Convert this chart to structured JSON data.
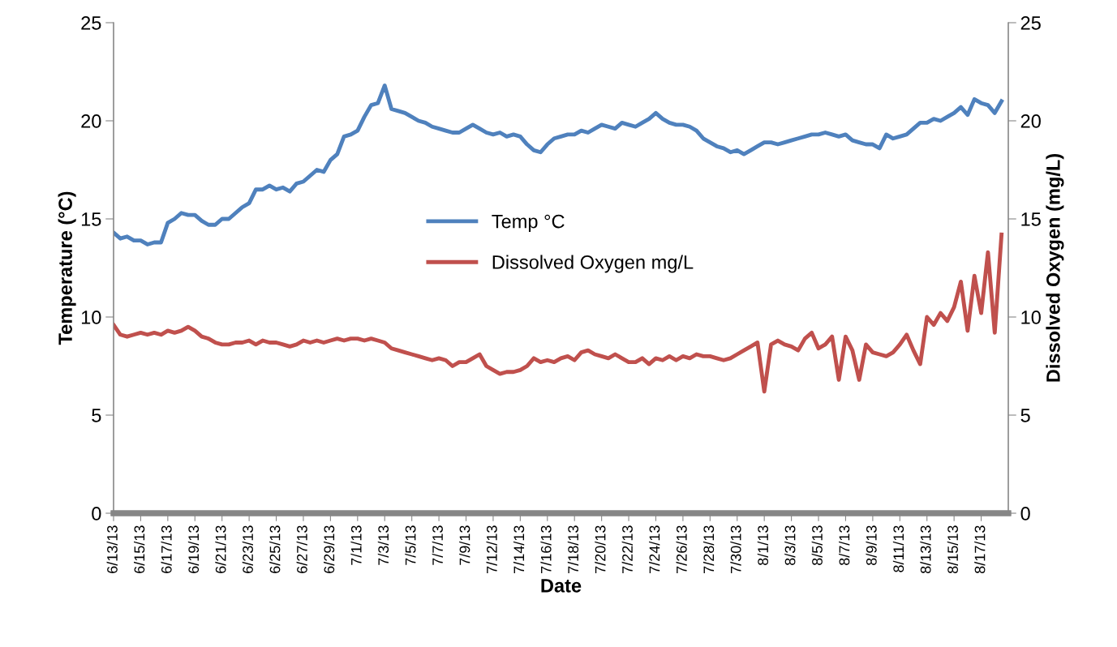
{
  "chart_data": {
    "type": "line",
    "xlabel": "Date",
    "ylabel": "Temperature (°C)",
    "y2label": "Dissolved Oxygen (mg/L)",
    "categories": [
      "6/13/13",
      null,
      null,
      null,
      "6/15/13",
      null,
      null,
      null,
      "6/17/13",
      null,
      null,
      null,
      "6/19/13",
      null,
      null,
      null,
      "6/21/13",
      null,
      null,
      null,
      "6/23/13",
      null,
      null,
      null,
      "6/25/13",
      null,
      null,
      null,
      "6/27/13",
      null,
      null,
      null,
      "6/29/13",
      null,
      null,
      null,
      "7/1/13",
      null,
      null,
      null,
      "7/3/13",
      null,
      null,
      null,
      "7/5/13",
      null,
      null,
      null,
      "7/7/13",
      null,
      null,
      null,
      "7/9/13",
      null,
      null,
      null,
      "7/12/13",
      null,
      null,
      null,
      "7/14/13",
      null,
      null,
      null,
      "7/16/13",
      null,
      null,
      null,
      "7/18/13",
      null,
      null,
      null,
      "7/20/13",
      null,
      null,
      null,
      "7/22/13",
      null,
      null,
      null,
      "7/24/13",
      null,
      null,
      null,
      "7/26/13",
      null,
      null,
      null,
      "7/28/13",
      null,
      null,
      null,
      "7/30/13",
      null,
      null,
      null,
      "8/1/13",
      null,
      null,
      null,
      "8/3/13",
      null,
      null,
      null,
      "8/5/13",
      null,
      null,
      null,
      "8/7/13",
      null,
      null,
      null,
      "8/9/13",
      null,
      null,
      null,
      "8/11/13",
      null,
      null,
      null,
      "8/13/13",
      null,
      null,
      null,
      "8/15/13",
      null,
      null,
      null,
      "8/17/13",
      null,
      null,
      null
    ],
    "series": [
      {
        "name": "Temp °C",
        "color": "#4f81bd",
        "values": [
          14.3,
          14.0,
          14.1,
          13.9,
          13.9,
          13.7,
          13.8,
          13.8,
          14.8,
          15.0,
          15.3,
          15.2,
          15.2,
          14.9,
          14.7,
          14.7,
          15.0,
          15.0,
          15.3,
          15.6,
          15.8,
          16.5,
          16.5,
          16.7,
          16.5,
          16.6,
          16.4,
          16.8,
          16.9,
          17.2,
          17.5,
          17.4,
          18.0,
          18.3,
          19.2,
          19.3,
          19.5,
          20.2,
          20.8,
          20.9,
          21.8,
          20.6,
          20.5,
          20.4,
          20.2,
          20.0,
          19.9,
          19.7,
          19.6,
          19.5,
          19.4,
          19.4,
          19.6,
          19.8,
          19.6,
          19.4,
          19.3,
          19.4,
          19.2,
          19.3,
          19.2,
          18.8,
          18.5,
          18.4,
          18.8,
          19.1,
          19.2,
          19.3,
          19.3,
          19.5,
          19.4,
          19.6,
          19.8,
          19.7,
          19.6,
          19.9,
          19.8,
          19.7,
          19.9,
          20.1,
          20.4,
          20.1,
          19.9,
          19.8,
          19.8,
          19.7,
          19.5,
          19.1,
          18.9,
          18.7,
          18.6,
          18.4,
          18.5,
          18.3,
          18.5,
          18.7,
          18.9,
          18.9,
          18.8,
          18.9,
          19.0,
          19.1,
          19.2,
          19.3,
          19.3,
          19.4,
          19.3,
          19.2,
          19.3,
          19.0,
          18.9,
          18.8,
          18.8,
          18.6,
          19.3,
          19.1,
          19.2,
          19.3,
          19.6,
          19.9,
          19.9,
          20.1,
          20.0,
          20.2,
          20.4,
          20.7,
          20.3,
          21.1,
          20.9,
          20.8,
          20.4,
          21.0
        ]
      },
      {
        "name": "Dissolved Oxygen mg/L",
        "color": "#c0504d",
        "axis": "y2",
        "values": [
          9.6,
          9.1,
          9.0,
          9.1,
          9.2,
          9.1,
          9.2,
          9.1,
          9.3,
          9.2,
          9.3,
          9.5,
          9.3,
          9.0,
          8.9,
          8.7,
          8.6,
          8.6,
          8.7,
          8.7,
          8.8,
          8.6,
          8.8,
          8.7,
          8.7,
          8.6,
          8.5,
          8.6,
          8.8,
          8.7,
          8.8,
          8.7,
          8.8,
          8.9,
          8.8,
          8.9,
          8.9,
          8.8,
          8.9,
          8.8,
          8.7,
          8.4,
          8.3,
          8.2,
          8.1,
          8.0,
          7.9,
          7.8,
          7.9,
          7.8,
          7.5,
          7.7,
          7.7,
          7.9,
          8.1,
          7.5,
          7.3,
          7.1,
          7.2,
          7.2,
          7.3,
          7.5,
          7.9,
          7.7,
          7.8,
          7.7,
          7.9,
          8.0,
          7.8,
          8.2,
          8.3,
          8.1,
          8.0,
          7.9,
          8.1,
          7.9,
          7.7,
          7.7,
          7.9,
          7.6,
          7.9,
          7.8,
          8.0,
          7.8,
          8.0,
          7.9,
          8.1,
          8.0,
          8.0,
          7.9,
          7.8,
          7.9,
          8.1,
          8.3,
          8.5,
          8.7,
          6.2,
          8.6,
          8.8,
          8.6,
          8.5,
          8.3,
          8.9,
          9.2,
          8.4,
          8.6,
          9.0,
          6.8,
          9.0,
          8.3,
          6.8,
          8.6,
          8.2,
          8.1,
          8.0,
          8.2,
          8.6,
          9.1,
          8.3,
          7.6,
          10.0,
          9.6,
          10.2,
          9.8,
          10.5,
          11.8,
          9.3,
          12.1,
          10.2,
          13.3,
          9.2,
          14.2
        ]
      }
    ],
    "ylim": [
      0,
      25
    ],
    "yticks": [
      0,
      5,
      10,
      15,
      20,
      25
    ],
    "y2lim": [
      0,
      25
    ],
    "y2ticks": [
      0,
      5,
      10,
      15,
      20,
      25
    ],
    "grid": false,
    "legend": "center",
    "marker": "none",
    "line_style": "solid"
  }
}
